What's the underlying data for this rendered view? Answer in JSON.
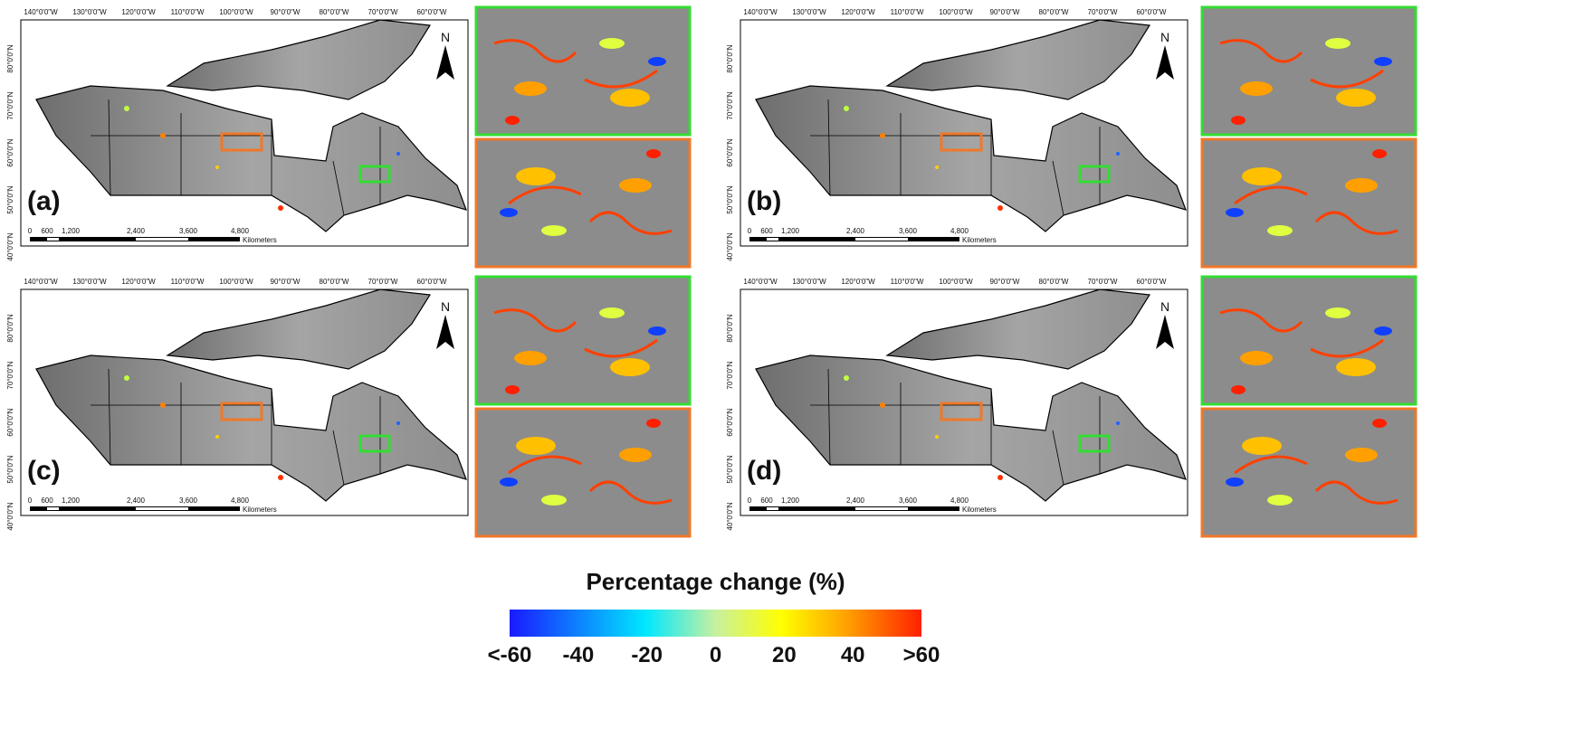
{
  "map": {
    "lon_labels": [
      "140°0'0\"W",
      "130°0'0\"W",
      "120°0'0\"W",
      "110°0'0\"W",
      "100°0'0\"W",
      "90°0'0\"W",
      "80°0'0\"W",
      "70°0'0\"W",
      "60°0'0\"W"
    ],
    "lat_labels": [
      "80°0'0\"N",
      "70°0'0\"N",
      "60°0'0\"N",
      "50°0'0\"N",
      "40°0'0\"N"
    ],
    "scale_labels": [
      "0",
      "600",
      "1,200",
      "2,400",
      "3,600",
      "4,800"
    ],
    "scale_unit": "Kilometers",
    "north": "N"
  },
  "panels": [
    {
      "label": "(a)"
    },
    {
      "label": "(b)"
    },
    {
      "label": "(c)"
    },
    {
      "label": "(d)"
    }
  ],
  "colorbar": {
    "title": "Percentage change (%)",
    "range": [
      -60,
      60
    ],
    "ticks": [
      {
        "value": -60,
        "label": "<-60"
      },
      -40,
      -20,
      0,
      20,
      40,
      {
        "value": 60,
        "label": ">60"
      }
    ]
  }
}
